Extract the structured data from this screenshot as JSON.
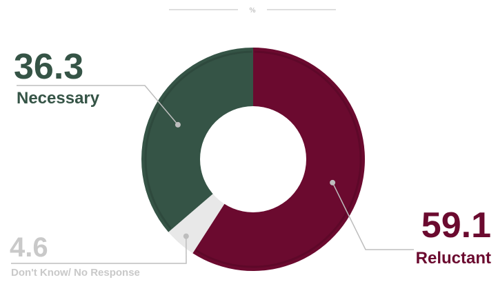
{
  "chart_data": {
    "type": "pie",
    "unit_label": "%",
    "slices": [
      {
        "label": "Reluctant",
        "value": 59.1,
        "value_text": "59.1",
        "color": "#6b0a2f"
      },
      {
        "label": "Don't Know/ No Response",
        "value": 4.6,
        "value_text": "4.6",
        "color": "#e8e8e8"
      },
      {
        "label": "Necessary",
        "value": 36.3,
        "value_text": "36.3",
        "color": "#355446"
      }
    ],
    "start": "top",
    "direction": "clockwise",
    "colors": {
      "reluctant_text": "#6b0a2f",
      "necessary_text": "#355446",
      "dontknow_text": "#c9c9c9",
      "leader_line": "#bdbdbd"
    }
  }
}
